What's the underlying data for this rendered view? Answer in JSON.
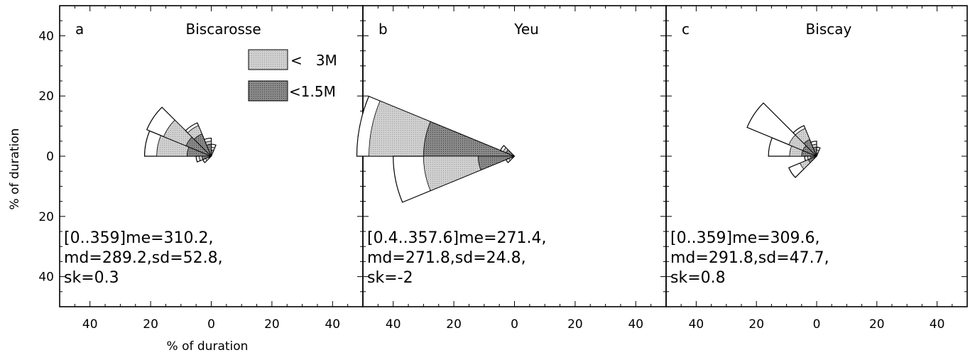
{
  "figure": {
    "ylabel": "% of duration",
    "xlabel": "% of duration",
    "legend": [
      {
        "label": "<   3M",
        "color": "#c8c8c8",
        "pattern": "light-dots"
      },
      {
        "label": "<1.5M",
        "color": "#7a7a7a",
        "pattern": "dark-dots"
      }
    ]
  },
  "chart_data": [
    {
      "type": "rose",
      "panel": "a",
      "title": "Biscarosse",
      "xlim": [
        -50,
        50
      ],
      "ylim": [
        -50,
        50
      ],
      "xticks": [
        "40",
        "20",
        "0",
        "20",
        "40"
      ],
      "yticks": [
        "40",
        "20",
        "0",
        "20",
        "40"
      ],
      "stats": [
        "[0..359]me=310.2,",
        "md=289.2,sd=52.8,",
        "sk=0.3"
      ],
      "sectors": [
        {
          "from": 270,
          "to": 292.5,
          "total": 22,
          "lt3m": 18,
          "lt15m": 8
        },
        {
          "from": 292.5,
          "to": 315,
          "total": 23,
          "lt3m": 17,
          "lt15m": 9
        },
        {
          "from": 315,
          "to": 337.5,
          "total": 12,
          "lt3m": 11,
          "lt15m": 8
        },
        {
          "from": 337.5,
          "to": 360,
          "total": 6,
          "lt3m": 5,
          "lt15m": 4
        },
        {
          "from": 0,
          "to": 22.5,
          "total": 4,
          "lt3m": 3,
          "lt15m": 2
        },
        {
          "from": 247.5,
          "to": 270,
          "total": 5,
          "lt3m": 4,
          "lt15m": 3
        },
        {
          "from": 225,
          "to": 247.5,
          "total": 3,
          "lt3m": 2,
          "lt15m": 1
        }
      ]
    },
    {
      "type": "rose",
      "panel": "b",
      "title": "Yeu",
      "xlim": [
        -50,
        50
      ],
      "ylim": [
        -50,
        50
      ],
      "xticks": [
        "40",
        "20",
        "0",
        "20",
        "40"
      ],
      "yticks": [
        "40",
        "20",
        "0",
        "20",
        "40"
      ],
      "stats": [
        "[0.4..357.6]me=271.4,",
        "md=271.8,sd=24.8,",
        "sk=-2"
      ],
      "sectors": [
        {
          "from": 270,
          "to": 292.5,
          "total": 52,
          "lt3m": 48,
          "lt15m": 30
        },
        {
          "from": 247.5,
          "to": 270,
          "total": 40,
          "lt3m": 30,
          "lt15m": 12
        },
        {
          "from": 292.5,
          "to": 315,
          "total": 5,
          "lt3m": 4,
          "lt15m": 3
        },
        {
          "from": 225,
          "to": 247.5,
          "total": 3,
          "lt3m": 2,
          "lt15m": 1
        }
      ]
    },
    {
      "type": "rose",
      "panel": "c",
      "title": "Biscay",
      "xlim": [
        -50,
        50
      ],
      "ylim": [
        -50,
        50
      ],
      "xticks": [
        "40",
        "20",
        "0",
        "20",
        "40"
      ],
      "yticks": [
        "40",
        "20",
        "0",
        "20",
        "40"
      ],
      "stats": [
        "[0..359]me=309.6,",
        "md=291.8,sd=47.7,",
        "sk=0.8"
      ],
      "sectors": [
        {
          "from": 270,
          "to": 292.5,
          "total": 16,
          "lt3m": 9,
          "lt15m": 5
        },
        {
          "from": 292.5,
          "to": 315,
          "total": 25,
          "lt3m": 10,
          "lt15m": 5
        },
        {
          "from": 315,
          "to": 337.5,
          "total": 11,
          "lt3m": 10,
          "lt15m": 6
        },
        {
          "from": 337.5,
          "to": 360,
          "total": 5,
          "lt3m": 4,
          "lt15m": 3
        },
        {
          "from": 0,
          "to": 22.5,
          "total": 3,
          "lt3m": 2,
          "lt15m": 1
        },
        {
          "from": 247.5,
          "to": 270,
          "total": 4,
          "lt3m": 3,
          "lt15m": 2
        },
        {
          "from": 225,
          "to": 247.5,
          "total": 10,
          "lt3m": 6,
          "lt15m": 3
        }
      ]
    }
  ]
}
